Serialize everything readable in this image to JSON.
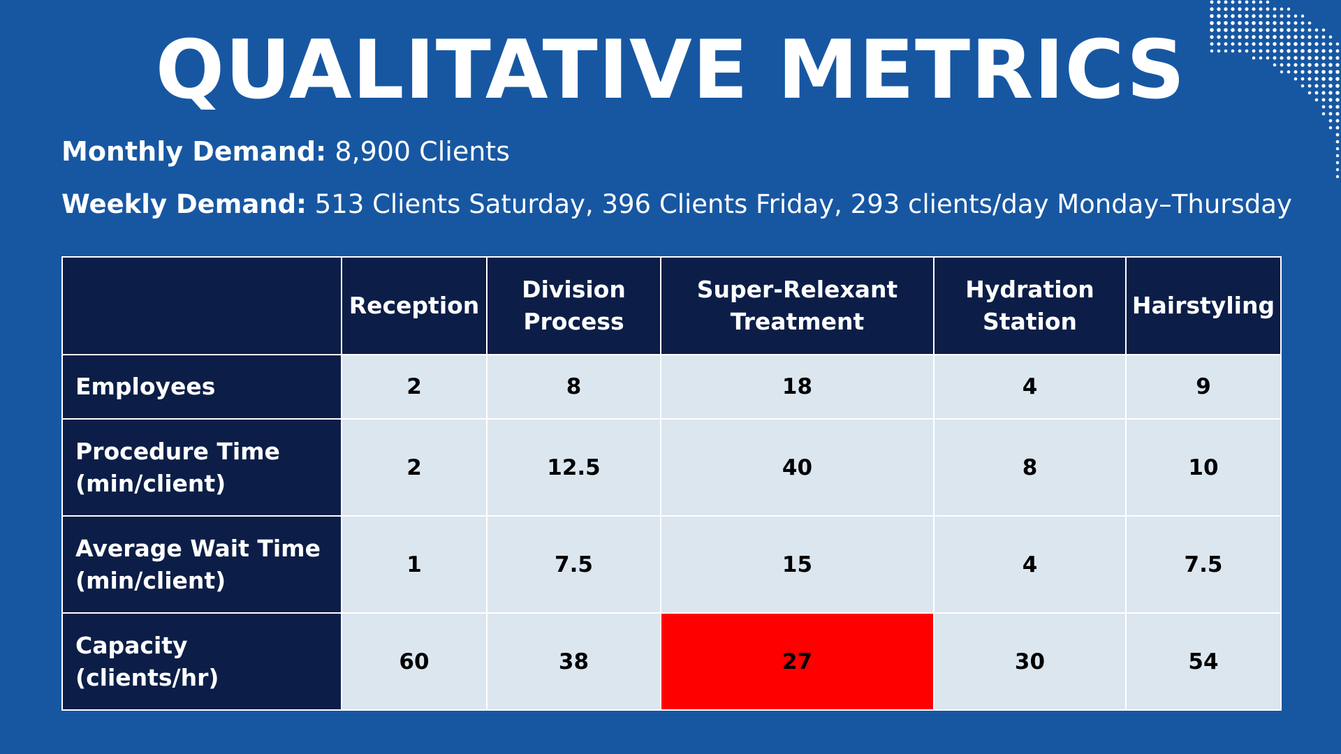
{
  "title": "QUALITATIVE METRICS",
  "monthly_demand": {
    "label": "Monthly Demand:",
    "value": " 8,900 Clients"
  },
  "weekly_demand": {
    "label": "Weekly Demand:",
    "value": " 513 Clients Saturday, 396 Clients Friday, 293 clients/day Monday–Thursday"
  },
  "table": {
    "columns": [
      [
        "Reception"
      ],
      [
        "Division",
        "Process"
      ],
      [
        "Super-Relexant",
        "Treatment"
      ],
      [
        "Hydration",
        "Station"
      ],
      [
        "Hairstyling"
      ]
    ],
    "rows": [
      {
        "label": [
          "Employees"
        ],
        "values": [
          "2",
          "8",
          "18",
          "4",
          "9"
        ]
      },
      {
        "label": [
          "Procedure Time",
          "(min/client)"
        ],
        "values": [
          "2",
          "12.5",
          "40",
          "8",
          "10"
        ]
      },
      {
        "label": [
          "Average Wait Time",
          "(min/client)"
        ],
        "values": [
          "1",
          "7.5",
          "15",
          "4",
          "7.5"
        ]
      },
      {
        "label": [
          "Capacity",
          "(clients/hr)"
        ],
        "values": [
          "60",
          "38",
          "27",
          "30",
          "54"
        ]
      }
    ],
    "highlight_color": "#ff0000"
  },
  "colors": {
    "background": "#1757a2",
    "header": "#0c1e47",
    "cell": "#dce6ef"
  }
}
